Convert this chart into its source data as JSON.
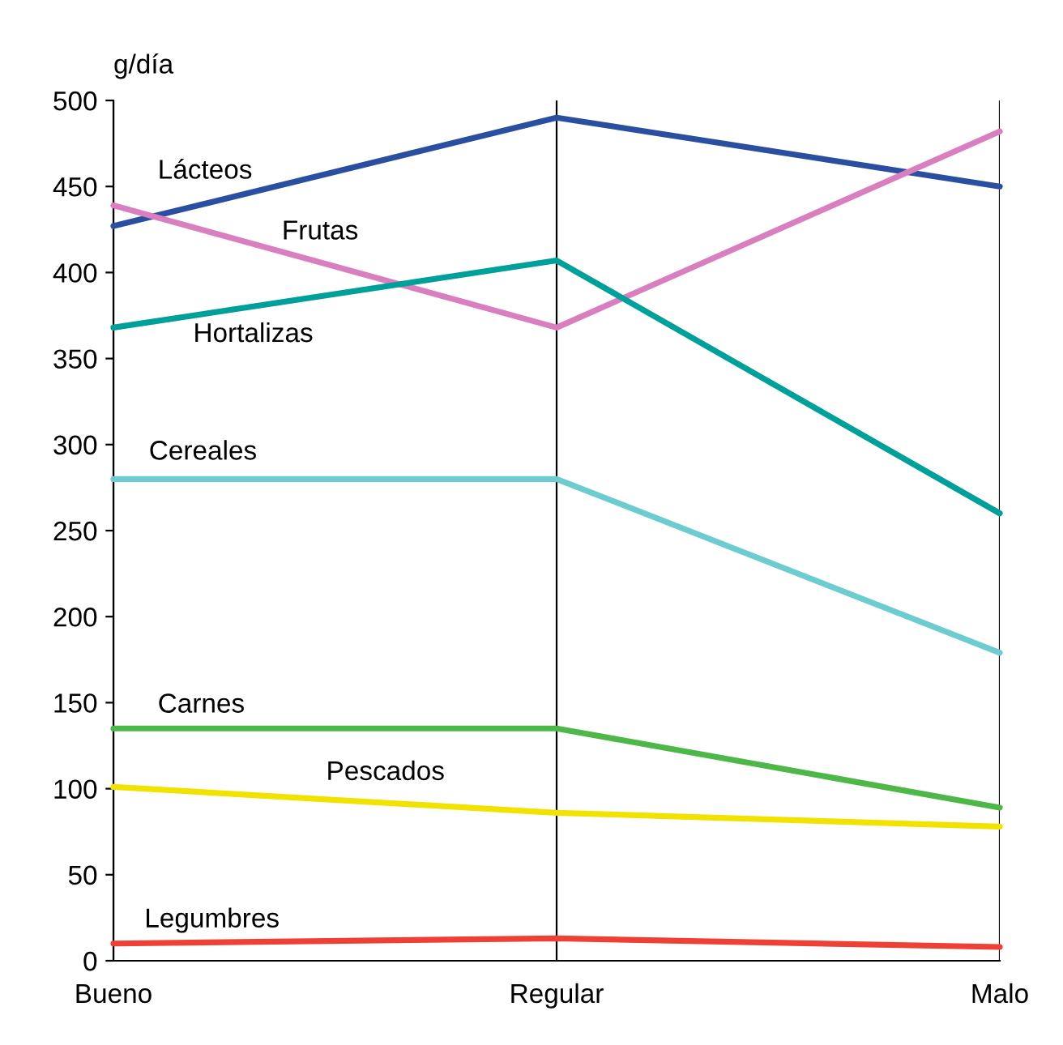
{
  "chart_data": {
    "type": "line",
    "ylabel": "g/día",
    "categories": [
      "Bueno",
      "Regular",
      "Malo"
    ],
    "ylim": [
      0,
      500
    ],
    "yticks": [
      0,
      50,
      100,
      150,
      200,
      250,
      300,
      350,
      400,
      450,
      500
    ],
    "grid": "x",
    "legend": false,
    "marker": "none",
    "line_style": "solid",
    "series": [
      {
        "name": "Lácteos",
        "color": "#2b4fa0",
        "values": [
          427,
          490,
          450
        ]
      },
      {
        "name": "Frutas",
        "color": "#d97fbf",
        "values": [
          439,
          368,
          482
        ]
      },
      {
        "name": "Hortalizas",
        "color": "#00a09a",
        "values": [
          368,
          407,
          260
        ]
      },
      {
        "name": "Cereales",
        "color": "#6cccd0",
        "values": [
          280,
          280,
          179
        ]
      },
      {
        "name": "Carnes",
        "color": "#4db848",
        "values": [
          135,
          135,
          89
        ]
      },
      {
        "name": "Pescados",
        "color": "#f2e200",
        "values": [
          101,
          86,
          78
        ]
      },
      {
        "name": "Legumbres",
        "color": "#ee4035",
        "values": [
          10,
          13,
          8
        ]
      }
    ]
  }
}
